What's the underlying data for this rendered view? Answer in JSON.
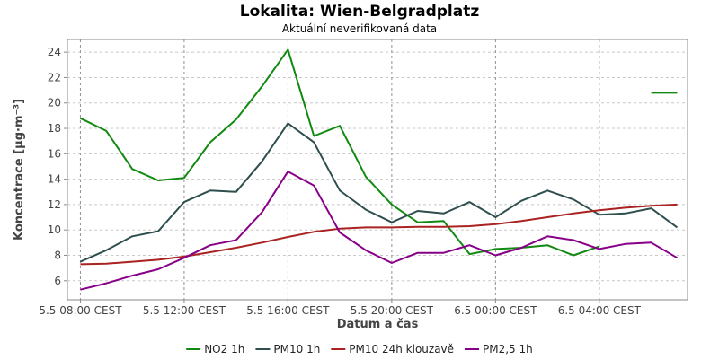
{
  "chart_data": {
    "type": "line",
    "title": "Lokalita: Wien-Belgradplatz",
    "subtitle": "Aktuální neverifikovaná data",
    "xlabel": "Datum a čas",
    "ylabel": "Koncentrace [µg·m⁻³]",
    "x_start": "2024-05-05 08:00",
    "x_step_hours": 1,
    "xlim": [
      -0.5,
      23.4
    ],
    "ylim": [
      4.5,
      25
    ],
    "x_ticks": [
      {
        "x": 0,
        "label": "5.5 08:00 CEST"
      },
      {
        "x": 4,
        "label": "5.5 12:00 CEST"
      },
      {
        "x": 8,
        "label": "5.5 16:00 CEST"
      },
      {
        "x": 12,
        "label": "5.5 20:00 CEST"
      },
      {
        "x": 16,
        "label": "6.5 00:00 CEST"
      },
      {
        "x": 20,
        "label": "6.5 04:00 CEST"
      }
    ],
    "y_ticks": [
      6,
      8,
      10,
      12,
      14,
      16,
      18,
      20,
      22,
      24
    ],
    "grid": true,
    "legend_position": "bottom",
    "series": [
      {
        "name": "NO2 1h",
        "color": "#128a12",
        "values": [
          18.8,
          17.8,
          14.8,
          13.9,
          14.1,
          16.9,
          18.7,
          21.3,
          24.2,
          17.4,
          18.2,
          14.2,
          12.0,
          10.6,
          10.7,
          8.1,
          8.5,
          8.6,
          8.8,
          8.0,
          8.7,
          null,
          20.8,
          20.8
        ]
      },
      {
        "name": "PM10 1h",
        "color": "#2f4f4f",
        "values": [
          7.5,
          8.4,
          9.5,
          9.9,
          12.2,
          13.1,
          13.0,
          15.4,
          18.4,
          16.9,
          13.1,
          11.6,
          10.6,
          11.5,
          11.3,
          12.2,
          11.0,
          12.3,
          13.1,
          12.4,
          11.2,
          11.3,
          11.7,
          10.2
        ]
      },
      {
        "name": "PM10 24h klouzavě",
        "color": "#aa2222",
        "values": [
          7.3,
          7.35,
          7.5,
          7.65,
          7.9,
          8.25,
          8.6,
          9.0,
          9.45,
          9.85,
          10.1,
          10.2,
          10.2,
          10.25,
          10.25,
          10.3,
          10.45,
          10.7,
          11.0,
          11.3,
          11.55,
          11.75,
          11.9,
          12.0
        ]
      },
      {
        "name": "PM2,5 1h",
        "color": "#880088",
        "values": [
          5.3,
          5.8,
          6.4,
          6.9,
          7.8,
          8.8,
          9.2,
          11.4,
          14.6,
          13.5,
          9.8,
          8.4,
          7.4,
          8.2,
          8.2,
          8.8,
          8.0,
          8.6,
          9.5,
          9.2,
          8.5,
          8.9,
          9.0,
          7.8
        ]
      }
    ]
  }
}
